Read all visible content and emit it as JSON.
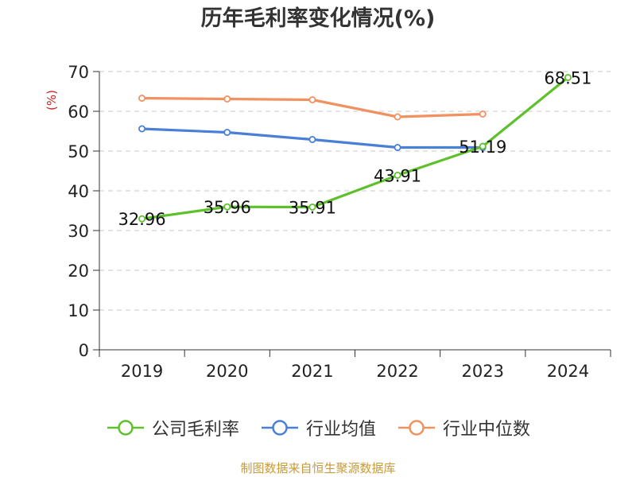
{
  "chart_data": {
    "type": "line",
    "title": "历年毛利率变化情况(%)",
    "ylabel": "(%)",
    "xlabel": "",
    "categories": [
      "2019",
      "2020",
      "2021",
      "2022",
      "2023",
      "2024"
    ],
    "ylim": [
      0,
      70
    ],
    "yticks": [
      0,
      10,
      20,
      30,
      40,
      50,
      60,
      70
    ],
    "grid": true,
    "legend_position": "bottom",
    "series": [
      {
        "name": "公司毛利率",
        "color": "#5ec12c",
        "values": [
          32.96,
          35.96,
          35.91,
          43.91,
          51.19,
          68.51
        ],
        "labeled": true
      },
      {
        "name": "行业均值",
        "color": "#4a7fd8",
        "values": [
          55.6,
          54.7,
          52.9,
          50.9,
          50.9,
          null
        ],
        "labeled": false
      },
      {
        "name": "行业中位数",
        "color": "#f29160",
        "values": [
          63.3,
          63.1,
          62.9,
          58.6,
          59.3,
          null
        ],
        "labeled": false
      }
    ]
  },
  "source_note": "制图数据来自恒生聚源数据库"
}
